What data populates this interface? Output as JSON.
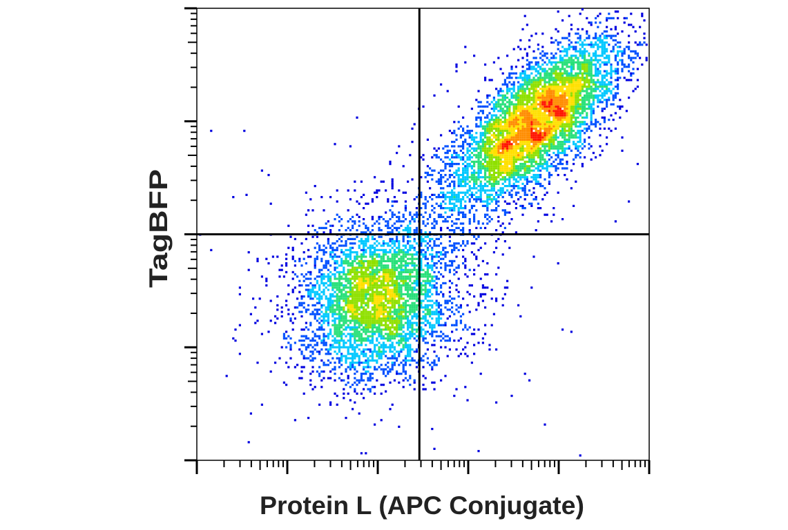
{
  "chart_data": {
    "type": "scatter",
    "subtype": "flow-cytometry-density",
    "title": "",
    "xlabel": "Protein L (APC Conjugate)",
    "ylabel": "TagBFP",
    "x_scale": "log",
    "y_scale": "log",
    "x_decades": 5,
    "y_decades": 4,
    "tick_labels_shown": false,
    "grid": false,
    "legend": "none",
    "quadrant_gate": {
      "x_decade": 2.46,
      "y_decade": 2.0
    },
    "populations": [
      {
        "name": "",
        "center_decade": [
          1.97,
          1.42
        ],
        "spread_decade": [
          0.42,
          0.34
        ],
        "tilt": 0.1,
        "relative_count": 4300,
        "peak_color": "#34e31c"
      },
      {
        "name": "",
        "center_decade": [
          3.75,
          3.0
        ],
        "spread_decade": [
          0.45,
          0.36
        ],
        "tilt": 0.72,
        "relative_count": 5600,
        "peak_color": "#ff1400"
      }
    ],
    "density_colormap": [
      "#0000e0",
      "#0050ff",
      "#00c8ff",
      "#29e07a",
      "#8fe000",
      "#ffe000",
      "#ff8c00",
      "#ff1400"
    ],
    "colors": {
      "axes": "#000000",
      "gate": "#000000",
      "axis_title": "#222222",
      "background": "#ffffff"
    }
  }
}
